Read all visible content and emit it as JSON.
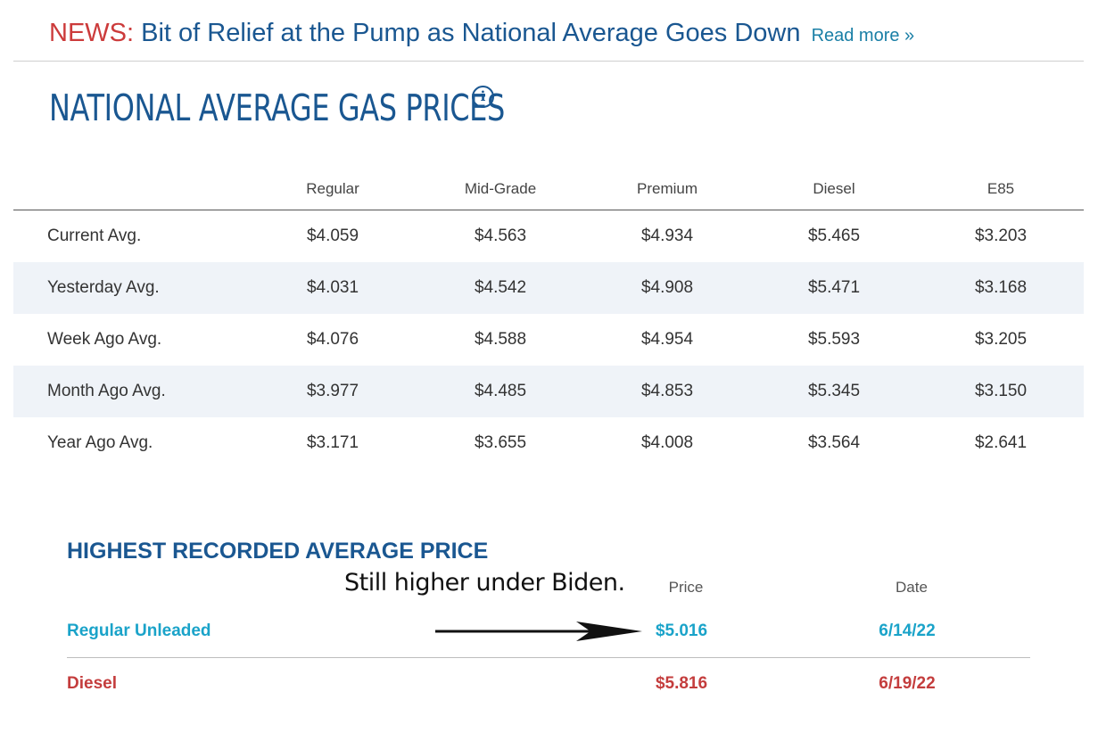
{
  "news": {
    "tag": "NEWS:",
    "headline": "Bit of Relief at the Pump as National Average Goes Down",
    "read_more": "Read more »"
  },
  "title": "NATIONAL AVERAGE GAS PRICES",
  "info_icon": {
    "icon": "info-icon",
    "glyph": "i"
  },
  "table": {
    "columns": [
      "Regular",
      "Mid-Grade",
      "Premium",
      "Diesel",
      "E85"
    ],
    "rows": [
      {
        "label": "Current Avg.",
        "values": [
          "$4.059",
          "$4.563",
          "$4.934",
          "$5.465",
          "$3.203"
        ]
      },
      {
        "label": "Yesterday Avg.",
        "values": [
          "$4.031",
          "$4.542",
          "$4.908",
          "$5.471",
          "$3.168"
        ]
      },
      {
        "label": "Week Ago Avg.",
        "values": [
          "$4.076",
          "$4.588",
          "$4.954",
          "$5.593",
          "$3.205"
        ]
      },
      {
        "label": "Month Ago Avg.",
        "values": [
          "$3.977",
          "$4.485",
          "$4.853",
          "$5.345",
          "$3.150"
        ]
      },
      {
        "label": "Year Ago Avg.",
        "values": [
          "$3.171",
          "$3.655",
          "$4.008",
          "$3.564",
          "$2.641"
        ]
      }
    ]
  },
  "highest": {
    "title": "HIGHEST RECORDED AVERAGE PRICE",
    "price_header": "Price",
    "date_header": "Date",
    "rows": [
      {
        "label": "Regular Unleaded",
        "price": "$5.016",
        "date": "6/14/22"
      },
      {
        "label": "Diesel",
        "price": "$5.816",
        "date": "6/19/22"
      }
    ]
  },
  "annotation": "Still higher under Biden.",
  "colors": {
    "brand_blue": "#1a5791",
    "news_red": "#cc3b3b",
    "link_teal": "#1a7fa6",
    "regular_blue": "#1aa3c9",
    "diesel_red": "#c43d3d",
    "row_alt_bg": "#eff3f8"
  }
}
